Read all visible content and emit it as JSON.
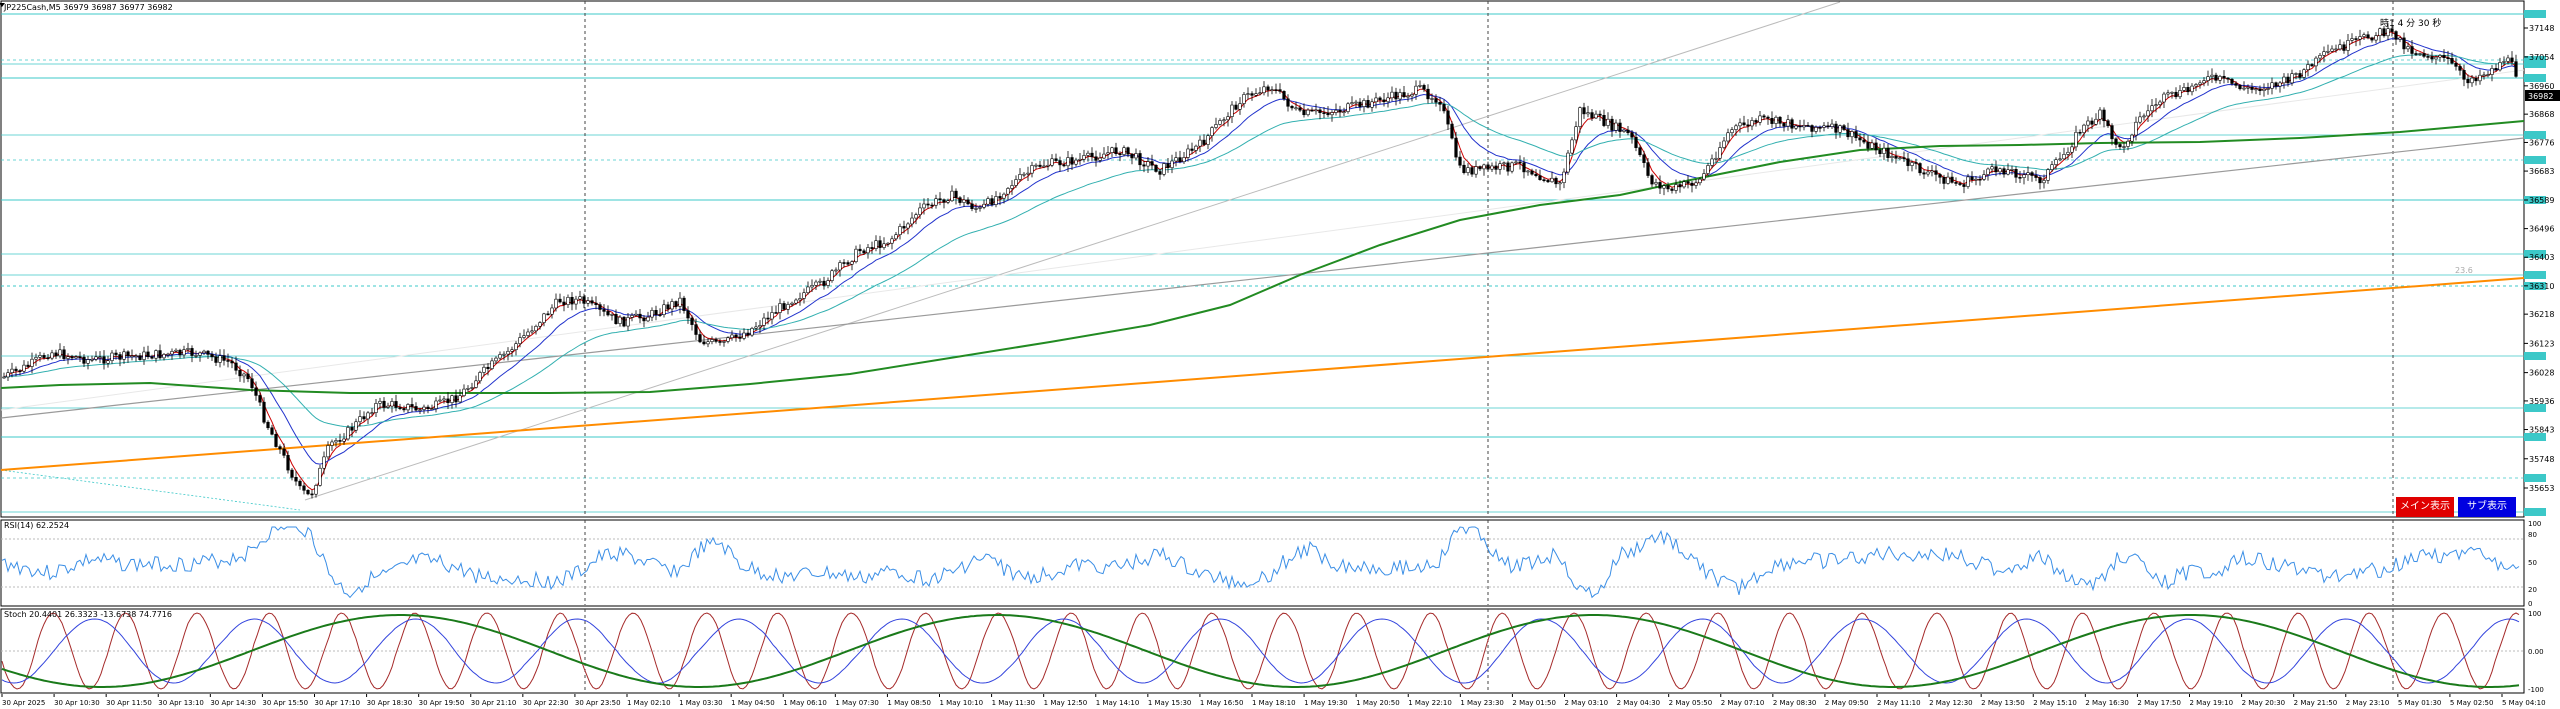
{
  "header": {
    "symbol_label": "JP225Cash,M5",
    "ohlc": [
      "36979",
      "36987",
      "36977",
      "36982"
    ],
    "countdown": "時1 4 分 30 秒"
  },
  "main": {
    "price_ticks": [
      "37148",
      "37054",
      "36960",
      "36868",
      "36776",
      "36683",
      "36589",
      "36496",
      "36403",
      "36310",
      "36218",
      "36123",
      "36028",
      "35936",
      "35843",
      "35748",
      "35653"
    ],
    "current_price": "36982",
    "fib_label": "23.6",
    "buttons": {
      "main": "メイン表示",
      "sub": "サブ表示"
    },
    "colors": {
      "candle_up": "#ffffff",
      "candle_down": "#000000",
      "ma_fast": "#cc0000",
      "ma_mid": "#2233cc",
      "ma_slow_cyan": "#33b0b0",
      "ma_200_green": "#228b22",
      "ma_orange": "#ff8c00",
      "trendline_gray": "#9a9a9a",
      "level_lines": "#3cc8c8"
    }
  },
  "rsi": {
    "label": "RSI(14) 62.2524",
    "ticks": [
      "100",
      "80",
      "50",
      "20",
      "0"
    ]
  },
  "stoch": {
    "label": "Stoch 20.4401 26.3323 -13.6738 74.7716",
    "ticks": [
      "100",
      "0.00",
      "-100"
    ]
  },
  "time_axis": [
    "30 Apr 2025",
    "30 Apr 10:30",
    "30 Apr 11:50",
    "30 Apr 13:10",
    "30 Apr 14:30",
    "30 Apr 15:50",
    "30 Apr 17:10",
    "30 Apr 18:30",
    "30 Apr 19:50",
    "30 Apr 21:10",
    "30 Apr 22:30",
    "30 Apr 23:50",
    "1 May 02:10",
    "1 May 03:30",
    "1 May 04:50",
    "1 May 06:10",
    "1 May 07:30",
    "1 May 08:50",
    "1 May 10:10",
    "1 May 11:30",
    "1 May 12:50",
    "1 May 14:10",
    "1 May 15:30",
    "1 May 16:50",
    "1 May 18:10",
    "1 May 19:30",
    "1 May 20:50",
    "1 May 22:10",
    "1 May 23:30",
    "2 May 01:50",
    "2 May 03:10",
    "2 May 04:30",
    "2 May 05:50",
    "2 May 07:10",
    "2 May 08:30",
    "2 May 09:50",
    "2 May 11:10",
    "2 May 12:30",
    "2 May 13:50",
    "2 May 15:10",
    "2 May 16:30",
    "2 May 17:50",
    "2 May 19:10",
    "2 May 20:30",
    "2 May 21:50",
    "2 May 23:10",
    "5 May 01:30",
    "5 May 02:50",
    "5 May 04:10"
  ]
}
